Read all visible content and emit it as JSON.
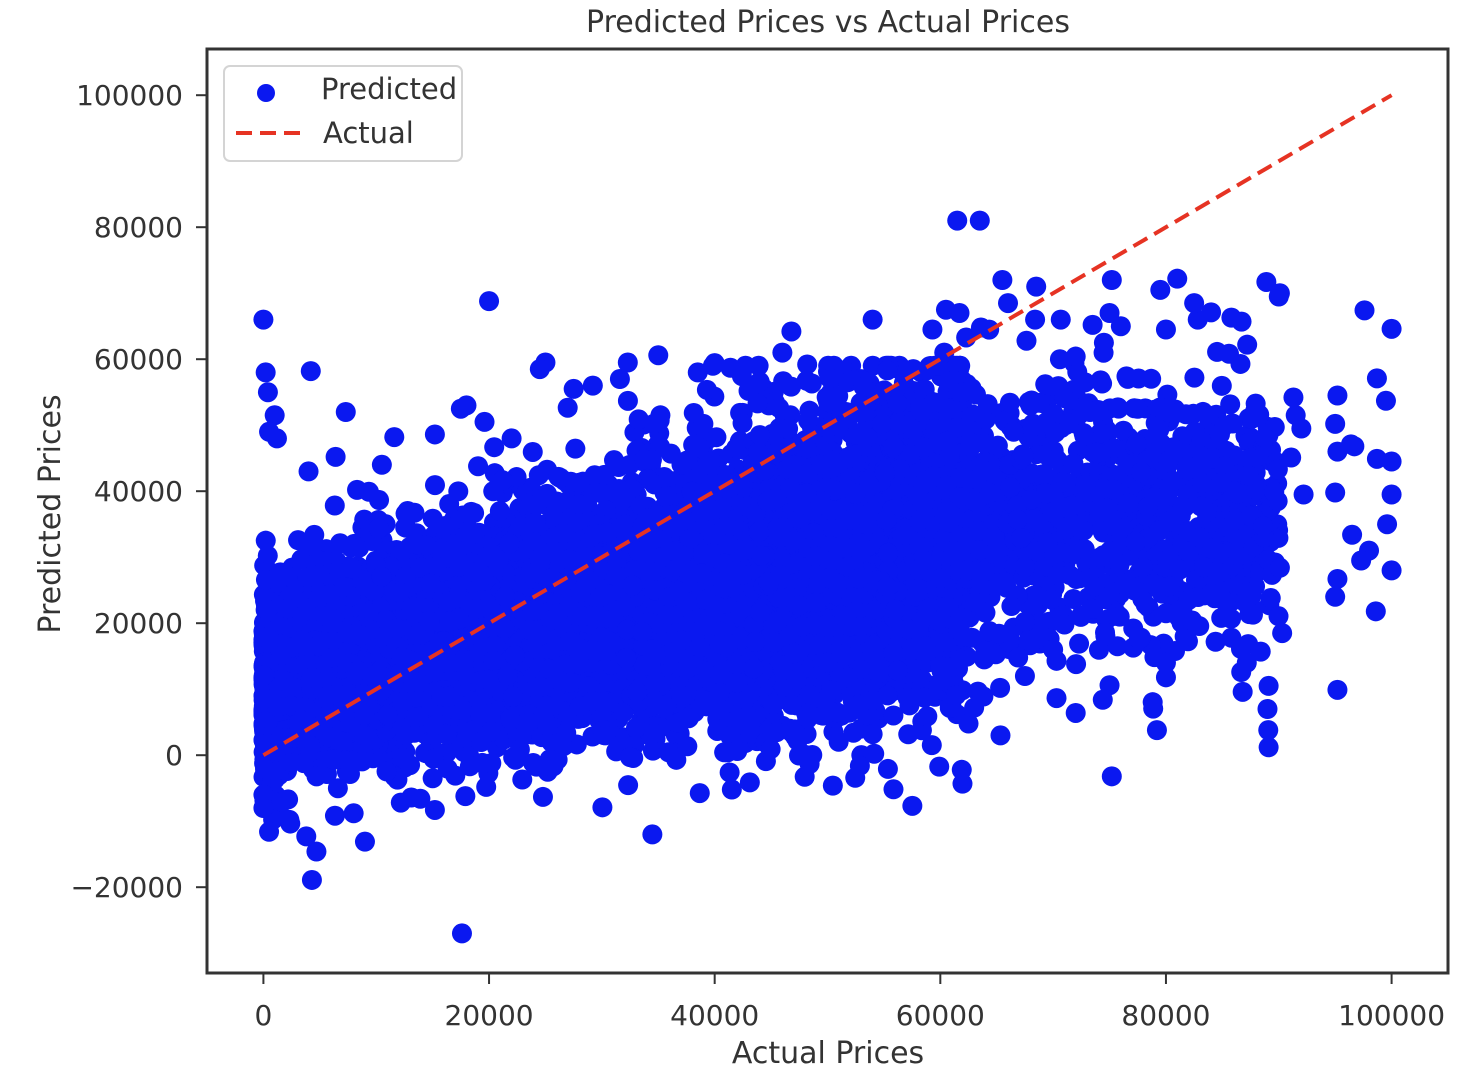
{
  "chart_data": {
    "type": "scatter",
    "title": "Predicted Prices vs Actual Prices",
    "xlabel": "Actual Prices",
    "ylabel": "Predicted Prices",
    "xlim": [
      -5000,
      105000
    ],
    "ylim": [
      -33000,
      107000
    ],
    "xticks": [
      0,
      20000,
      40000,
      60000,
      80000,
      100000
    ],
    "yticks": [
      -20000,
      0,
      20000,
      40000,
      60000,
      80000,
      100000
    ],
    "grid": false,
    "legend": {
      "placement": "top-left",
      "entries": [
        {
          "label": "Predicted",
          "marker": "circle",
          "color": "#0a18f0"
        },
        {
          "label": "Actual",
          "marker": "dashed-line",
          "color": "#e63323"
        }
      ]
    },
    "series": [
      {
        "name": "Predicted",
        "type": "scatter",
        "color": "#0a18f0",
        "points": [
          [
            0,
            66000
          ],
          [
            200,
            58000
          ],
          [
            400,
            55000
          ],
          [
            1000,
            51500
          ],
          [
            500,
            49000
          ],
          [
            1200,
            48000
          ],
          [
            4200,
            58200
          ],
          [
            4000,
            43000
          ],
          [
            7300,
            52000
          ],
          [
            10500,
            44000
          ],
          [
            11600,
            48200
          ],
          [
            15200,
            48600
          ],
          [
            17500,
            52500
          ],
          [
            18000,
            53000
          ],
          [
            19600,
            50500
          ],
          [
            20000,
            68800
          ],
          [
            22000,
            48000
          ],
          [
            25000,
            59500
          ],
          [
            24500,
            58500
          ],
          [
            27500,
            55500
          ],
          [
            29200,
            56000
          ],
          [
            31600,
            57000
          ],
          [
            32300,
            59500
          ],
          [
            35000,
            60600
          ],
          [
            38500,
            58000
          ],
          [
            40000,
            59400
          ],
          [
            41400,
            58700
          ],
          [
            43000,
            55200
          ],
          [
            46000,
            61000
          ],
          [
            46800,
            64200
          ],
          [
            48200,
            59200
          ],
          [
            50200,
            57100
          ],
          [
            54000,
            66000
          ],
          [
            55300,
            58300
          ],
          [
            57600,
            58500
          ],
          [
            58800,
            58300
          ],
          [
            60500,
            67500
          ],
          [
            59300,
            64500
          ],
          [
            61500,
            81000
          ],
          [
            63500,
            81000
          ],
          [
            61700,
            67000
          ],
          [
            63600,
            64800
          ],
          [
            65500,
            72000
          ],
          [
            66000,
            68500
          ],
          [
            68500,
            71000
          ],
          [
            68400,
            66000
          ],
          [
            70600,
            60000
          ],
          [
            72000,
            60400
          ],
          [
            73500,
            65200
          ],
          [
            74500,
            62500
          ],
          [
            75000,
            67000
          ],
          [
            76000,
            65000
          ],
          [
            75200,
            72000
          ],
          [
            76500,
            57400
          ],
          [
            77500,
            52500
          ],
          [
            79500,
            70500
          ],
          [
            81000,
            72200
          ],
          [
            82500,
            68500
          ],
          [
            80000,
            64500
          ],
          [
            84000,
            67100
          ],
          [
            85800,
            66300
          ],
          [
            86700,
            65700
          ],
          [
            87200,
            62200
          ],
          [
            88900,
            71700
          ],
          [
            90000,
            69500
          ],
          [
            90100,
            70000
          ],
          [
            91300,
            54200
          ],
          [
            91500,
            51500
          ],
          [
            92000,
            49500
          ],
          [
            95200,
            54500
          ],
          [
            97600,
            67400
          ],
          [
            100000,
            64600
          ],
          [
            98700,
            57100
          ],
          [
            99500,
            53700
          ],
          [
            100000,
            44500
          ],
          [
            100000,
            39500
          ],
          [
            99600,
            35000
          ],
          [
            98000,
            31000
          ],
          [
            97300,
            29500
          ],
          [
            96500,
            33400
          ],
          [
            95200,
            26700
          ],
          [
            95000,
            24000
          ],
          [
            95200,
            9900
          ],
          [
            98600,
            21800
          ],
          [
            100000,
            28000
          ],
          [
            90300,
            18500
          ],
          [
            89100,
            10500
          ],
          [
            89000,
            7000
          ],
          [
            89100,
            1200
          ],
          [
            86800,
            9600
          ],
          [
            88400,
            15700
          ],
          [
            84000,
            24500
          ],
          [
            87600,
            24200
          ],
          [
            82000,
            23500
          ],
          [
            80000,
            21500
          ],
          [
            80000,
            14000
          ],
          [
            80000,
            11800
          ],
          [
            79200,
            3800
          ],
          [
            77600,
            17600
          ],
          [
            75700,
            16500
          ],
          [
            75000,
            10600
          ],
          [
            74400,
            8400
          ],
          [
            75200,
            -3200
          ],
          [
            72000,
            6400
          ],
          [
            70300,
            14300
          ],
          [
            70000,
            16000
          ],
          [
            68800,
            20000
          ],
          [
            67500,
            12000
          ],
          [
            66900,
            14800
          ],
          [
            65300,
            10200
          ],
          [
            64000,
            15800
          ],
          [
            62500,
            4800
          ],
          [
            63000,
            7200
          ],
          [
            61800,
            14500
          ],
          [
            60000,
            13500
          ],
          [
            58600,
            8700
          ],
          [
            57100,
            8700
          ],
          [
            54000,
            3200
          ],
          [
            54000,
            8300
          ],
          [
            52300,
            3400
          ],
          [
            51800,
            11800
          ],
          [
            50000,
            14000
          ],
          [
            49600,
            6000
          ],
          [
            48400,
            9200
          ],
          [
            45500,
            3500
          ],
          [
            45200,
            7700
          ],
          [
            43200,
            5300
          ],
          [
            42000,
            11000
          ],
          [
            40500,
            7000
          ],
          [
            37700,
            5600
          ],
          [
            37500,
            13000
          ],
          [
            36600,
            -700
          ],
          [
            34600,
            3300
          ],
          [
            32500,
            -300
          ],
          [
            30300,
            3000
          ],
          [
            29200,
            8200
          ],
          [
            27200,
            11000
          ],
          [
            25200,
            -2500
          ],
          [
            24800,
            -1700
          ],
          [
            22300,
            -200
          ],
          [
            20200,
            -1200
          ],
          [
            19300,
            2000
          ],
          [
            17900,
            -6200
          ],
          [
            17600,
            -27000
          ],
          [
            15200,
            -8300
          ],
          [
            15000,
            -3500
          ],
          [
            13000,
            -1500
          ],
          [
            9000,
            -13100
          ],
          [
            8000,
            -8800
          ],
          [
            6600,
            -5000
          ],
          [
            4700,
            -14600
          ],
          [
            4300,
            -18900
          ],
          [
            3800,
            -12300
          ],
          [
            2300,
            -9800
          ],
          [
            500,
            -11600
          ],
          [
            0,
            -6000
          ],
          [
            0,
            -8000
          ],
          [
            14800,
            26000
          ],
          [
            17400,
            28600
          ],
          [
            12600,
            36600
          ],
          [
            8300,
            40200
          ],
          [
            6400,
            45200
          ],
          [
            39000,
            50200
          ],
          [
            44000,
            48500
          ],
          [
            48400,
            52200
          ],
          [
            53200,
            55800
          ],
          [
            56200,
            53300
          ],
          [
            58400,
            52000
          ],
          [
            60700,
            52500
          ],
          [
            61200,
            56800
          ],
          [
            62000,
            55000
          ],
          [
            64200,
            53200
          ],
          [
            65800,
            50500
          ],
          [
            66500,
            49000
          ],
          [
            68200,
            49800
          ],
          [
            68800,
            53400
          ],
          [
            69300,
            56200
          ],
          [
            71000,
            54100
          ],
          [
            72800,
            52800
          ],
          [
            74000,
            52300
          ],
          [
            75400,
            46500
          ],
          [
            76800,
            44000
          ],
          [
            77400,
            47200
          ],
          [
            78400,
            42300
          ],
          [
            79400,
            49300
          ],
          [
            80700,
            46400
          ],
          [
            81900,
            43800
          ],
          [
            83200,
            41200
          ],
          [
            84200,
            45000
          ],
          [
            85200,
            43800
          ],
          [
            86000,
            40000
          ],
          [
            87500,
            45000
          ],
          [
            88000,
            40200
          ],
          [
            89300,
            37500
          ],
          [
            89900,
            38500
          ],
          [
            60600,
            37000
          ],
          [
            61200,
            31000
          ],
          [
            62400,
            28000
          ],
          [
            63300,
            34000
          ],
          [
            64800,
            30500
          ],
          [
            65700,
            26200
          ],
          [
            67500,
            28500
          ],
          [
            68600,
            24000
          ],
          [
            69500,
            32200
          ],
          [
            70400,
            27300
          ],
          [
            71700,
            35000
          ],
          [
            72800,
            31200
          ],
          [
            74200,
            30000
          ],
          [
            75600,
            34600
          ],
          [
            76300,
            25800
          ],
          [
            77300,
            32300
          ],
          [
            78400,
            37600
          ],
          [
            79400,
            34000
          ],
          [
            80900,
            36300
          ],
          [
            82000,
            30800
          ],
          [
            83000,
            33000
          ],
          [
            84500,
            27800
          ],
          [
            85600,
            34500
          ],
          [
            86400,
            30200
          ],
          [
            87200,
            24700
          ],
          [
            88700,
            33000
          ],
          [
            90100,
            28400
          ],
          [
            60800,
            45200
          ],
          [
            61800,
            42100
          ],
          [
            62700,
            47300
          ],
          [
            63900,
            43100
          ],
          [
            65100,
            46900
          ],
          [
            66200,
            40600
          ],
          [
            67400,
            45300
          ],
          [
            68100,
            38800
          ],
          [
            69200,
            42600
          ],
          [
            70600,
            37400
          ],
          [
            71800,
            44200
          ],
          [
            72900,
            41000
          ],
          [
            74100,
            36800
          ],
          [
            75300,
            40300
          ],
          [
            76700,
            38200
          ],
          [
            77800,
            42900
          ],
          [
            79000,
            39100
          ],
          [
            80200,
            44600
          ],
          [
            81500,
            37600
          ],
          [
            82700,
            43300
          ],
          [
            83600,
            36800
          ],
          [
            84900,
            41300
          ],
          [
            86100,
            35600
          ],
          [
            87300,
            42400
          ],
          [
            88600,
            34700
          ],
          [
            89600,
            39900
          ],
          [
            91100,
            45100
          ],
          [
            92200,
            39500
          ],
          [
            95000,
            39800
          ],
          [
            96400,
            47100
          ],
          [
            95200,
            46000
          ],
          [
            95000,
            50200
          ],
          [
            96700,
            46800
          ],
          [
            98700,
            44900
          ],
          [
            60700,
            22500
          ],
          [
            61600,
            19000
          ],
          [
            62800,
            17800
          ],
          [
            64000,
            21600
          ],
          [
            65200,
            18400
          ],
          [
            66300,
            22600
          ],
          [
            67500,
            20200
          ],
          [
            68700,
            17700
          ],
          [
            69800,
            23600
          ],
          [
            71000,
            19800
          ],
          [
            72300,
            16900
          ],
          [
            73400,
            22200
          ],
          [
            74600,
            18600
          ],
          [
            75900,
            21000
          ],
          [
            77100,
            19200
          ],
          [
            78200,
            22800
          ]
        ]
      },
      {
        "name": "Actual",
        "type": "line",
        "style": "dashed",
        "color": "#e63323",
        "points": [
          [
            0,
            0
          ],
          [
            100000,
            100000
          ]
        ]
      }
    ]
  }
}
